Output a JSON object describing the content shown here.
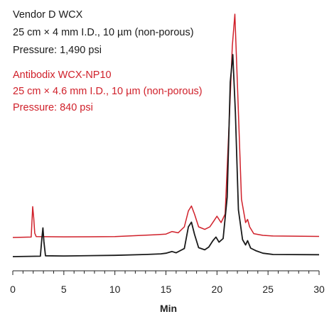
{
  "chart_data": {
    "type": "line",
    "xlabel": "Min",
    "ylabel": "",
    "xlim": [
      0,
      30
    ],
    "x_ticks": [
      "0",
      "5",
      "10",
      "15",
      "20",
      "25",
      "30"
    ],
    "grid": false,
    "legend_placement": "top-left",
    "series": [
      {
        "name": "Vendor D WCX",
        "legend_lines": [
          "Vendor D WCX",
          "25 cm × 4 mm I.D., 10 µm (non-porous)",
          "Pressure: 1,490 psi"
        ],
        "color": "#1a1a1a",
        "x": [
          0.0,
          2.7,
          2.85,
          2.95,
          3.05,
          3.2,
          5.0,
          10.0,
          13.0,
          14.5,
          15.0,
          15.6,
          16.0,
          16.8,
          17.2,
          17.5,
          17.8,
          18.2,
          18.8,
          19.2,
          19.6,
          19.9,
          20.2,
          20.6,
          21.0,
          21.3,
          21.55,
          21.8,
          22.1,
          22.5,
          22.8,
          23.0,
          23.3,
          23.8,
          24.5,
          25.5,
          30.0
        ],
        "y": [
          0.0,
          0.2,
          8.5,
          13.5,
          7.0,
          0.4,
          0.3,
          0.6,
          1.0,
          1.3,
          1.6,
          2.4,
          1.8,
          3.8,
          14.0,
          16.2,
          10.5,
          4.2,
          3.2,
          4.5,
          7.5,
          9.2,
          6.8,
          8.5,
          28.0,
          82.0,
          95.0,
          68.0,
          22.0,
          8.0,
          5.5,
          7.5,
          4.0,
          2.8,
          1.6,
          1.0,
          0.9
        ]
      },
      {
        "name": "Antibodix WCX-NP10",
        "legend_lines": [
          "Antibodix WCX-NP10",
          "25 cm × 4.6 mm I.D., 10 µm (non-porous)",
          "Pressure: 840 psi"
        ],
        "color": "#d0202a",
        "x": [
          0.0,
          1.8,
          1.95,
          2.05,
          2.15,
          2.3,
          5.0,
          10.0,
          14.0,
          15.0,
          15.6,
          16.2,
          16.8,
          17.2,
          17.5,
          17.8,
          18.2,
          18.8,
          19.3,
          19.7,
          20.0,
          20.4,
          20.8,
          21.2,
          21.5,
          21.75,
          22.0,
          22.4,
          22.8,
          23.0,
          23.2,
          23.6,
          24.5,
          25.5,
          30.0
        ],
        "y": [
          0.0,
          0.2,
          14.5,
          9.0,
          2.0,
          0.4,
          0.3,
          0.4,
          1.3,
          1.6,
          2.8,
          2.2,
          5.0,
          12.5,
          14.8,
          11.0,
          5.0,
          3.8,
          5.0,
          7.8,
          10.0,
          7.0,
          11.0,
          55.0,
          90.0,
          105.0,
          72.0,
          18.0,
          7.0,
          8.5,
          5.0,
          1.8,
          1.0,
          0.7,
          0.5
        ]
      }
    ]
  }
}
